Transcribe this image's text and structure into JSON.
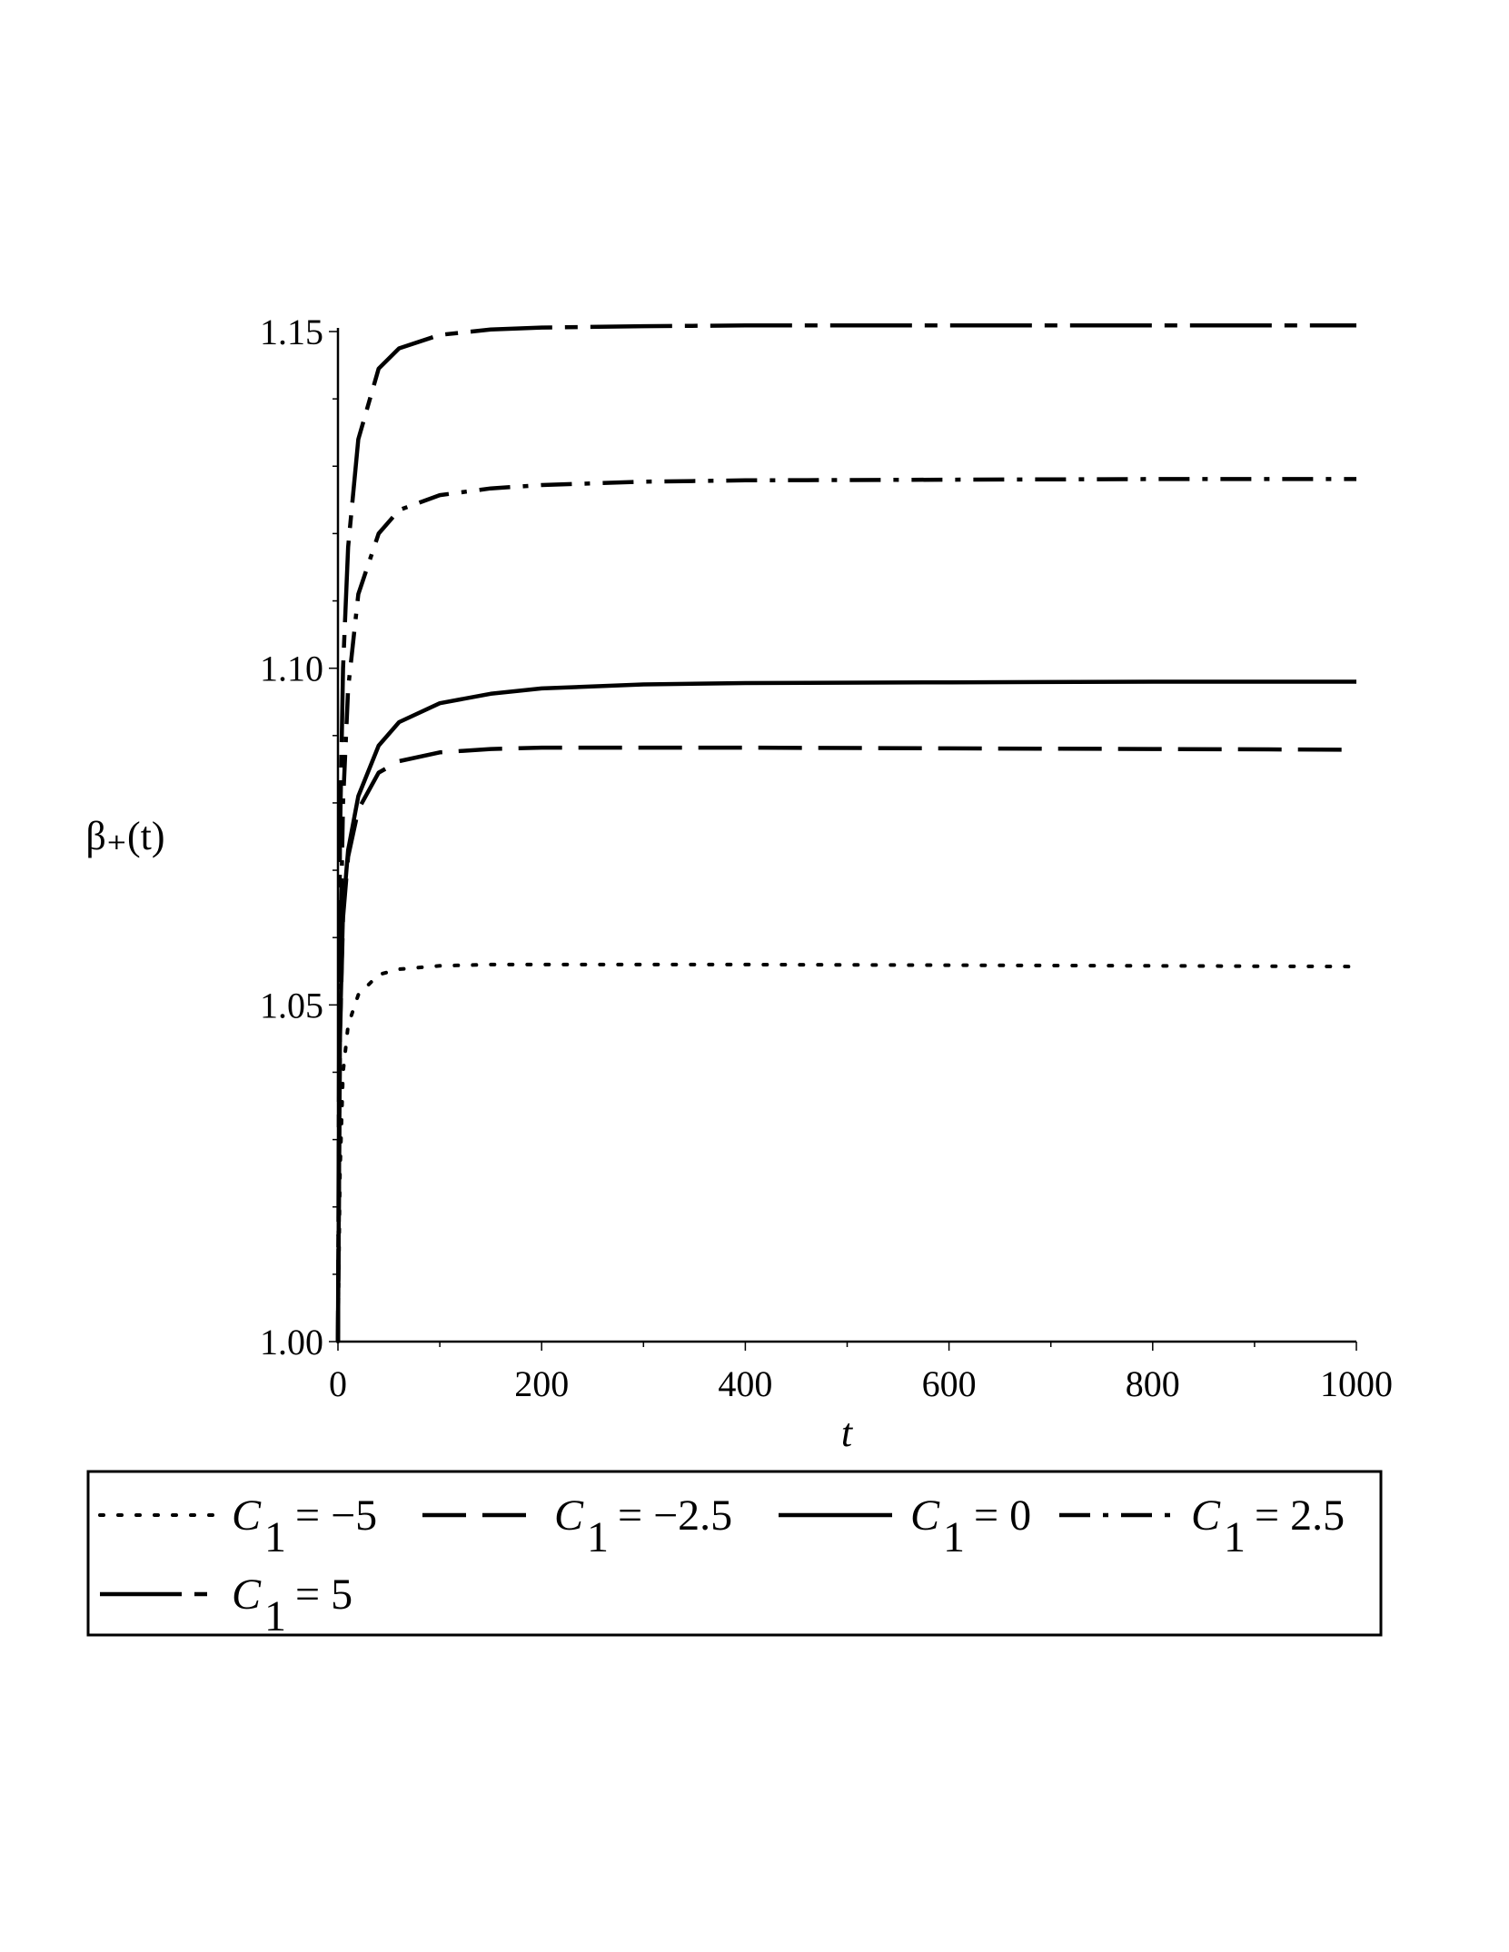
{
  "chart_data": {
    "type": "line",
    "title": "",
    "xlabel": "t",
    "ylabel": "β₊(t)",
    "xlim": [
      0,
      1000
    ],
    "ylim": [
      1.0,
      1.15
    ],
    "x_ticks": [
      0,
      200,
      400,
      600,
      800,
      1000
    ],
    "x_tick_labels": [
      "0",
      "200",
      "400",
      "600",
      "800",
      "1000"
    ],
    "y_ticks": [
      1.0,
      1.05,
      1.1,
      1.15
    ],
    "y_tick_labels": [
      "1.00",
      "1.05",
      "1.10",
      "1.15"
    ],
    "grid": false,
    "legend_position": "bottom",
    "series": [
      {
        "name": "C1 = −5",
        "legend_var": "C",
        "legend_sub": "1",
        "legend_rhs": "= −5",
        "dash": "dotted",
        "x": [
          0,
          2,
          5,
          10,
          20,
          40,
          60,
          100,
          150,
          200,
          300,
          400,
          600,
          800,
          1000
        ],
        "y": [
          1.0,
          1.025,
          1.04,
          1.047,
          1.0515,
          1.0545,
          1.0553,
          1.0558,
          1.056,
          1.056,
          1.056,
          1.056,
          1.0559,
          1.0558,
          1.0557
        ]
      },
      {
        "name": "C1 = −2.5",
        "legend_var": "C",
        "legend_sub": "1",
        "legend_rhs": "= −2.5",
        "dash": "dashed",
        "x": [
          0,
          2,
          5,
          10,
          20,
          40,
          60,
          100,
          150,
          200,
          300,
          400,
          600,
          800,
          1000
        ],
        "y": [
          1.0,
          1.045,
          1.063,
          1.072,
          1.079,
          1.0845,
          1.0862,
          1.0875,
          1.088,
          1.0882,
          1.0882,
          1.0882,
          1.0881,
          1.088,
          1.0879
        ]
      },
      {
        "name": "C1 = 0",
        "legend_var": "C",
        "legend_sub": "1",
        "legend_rhs": "= 0",
        "dash": "solid",
        "x": [
          0,
          2,
          5,
          10,
          20,
          40,
          60,
          100,
          150,
          200,
          300,
          400,
          600,
          800,
          1000
        ],
        "y": [
          1.0,
          1.046,
          1.064,
          1.073,
          1.081,
          1.0885,
          1.092,
          1.0948,
          1.0962,
          1.097,
          1.0976,
          1.0978,
          1.0979,
          1.098,
          1.098
        ]
      },
      {
        "name": "C1 = 2.5",
        "legend_var": "C",
        "legend_sub": "1",
        "legend_rhs": "= 2.5",
        "dash": "dashdot",
        "x": [
          0,
          2,
          5,
          10,
          20,
          40,
          60,
          100,
          150,
          200,
          300,
          400,
          600,
          800,
          1000
        ],
        "y": [
          1.0,
          1.055,
          1.08,
          1.097,
          1.111,
          1.12,
          1.1235,
          1.1257,
          1.1267,
          1.1272,
          1.1277,
          1.1279,
          1.128,
          1.1281,
          1.1281
        ]
      },
      {
        "name": "C1 = 5",
        "legend_var": "C",
        "legend_sub": "1",
        "legend_rhs": "= 5",
        "dash": "longdash-dot",
        "x": [
          0,
          2,
          5,
          10,
          20,
          40,
          60,
          100,
          150,
          200,
          300,
          400,
          600,
          800,
          1000
        ],
        "y": [
          1.0,
          1.075,
          1.1,
          1.118,
          1.134,
          1.1445,
          1.1475,
          1.1495,
          1.1503,
          1.1506,
          1.1508,
          1.1509,
          1.1509,
          1.1509,
          1.1509
        ]
      }
    ]
  }
}
